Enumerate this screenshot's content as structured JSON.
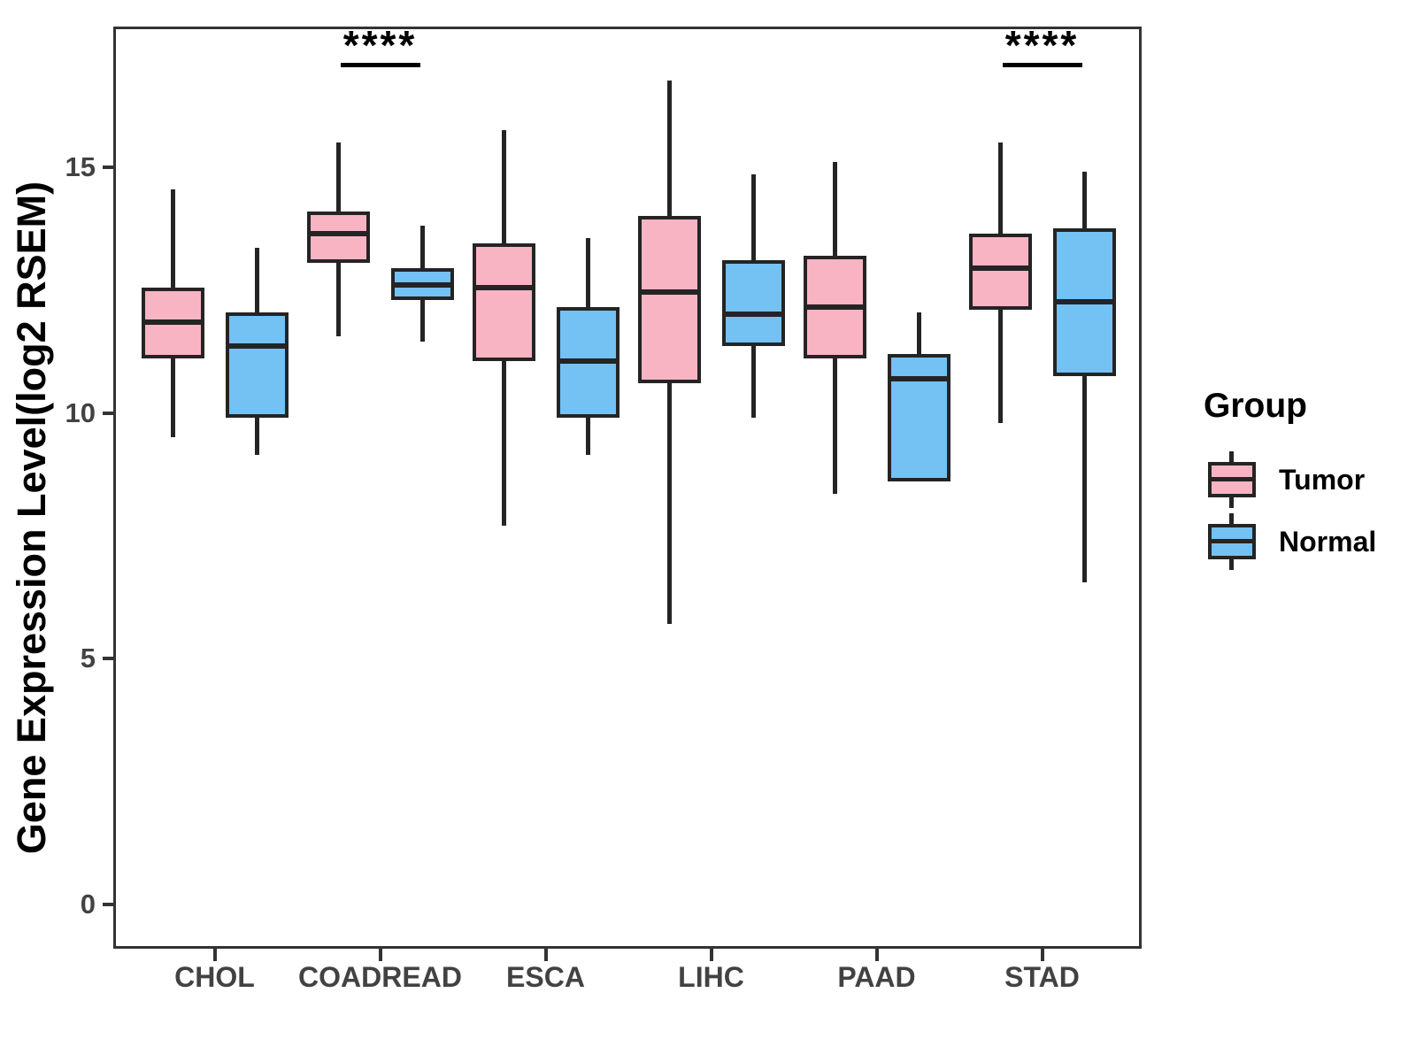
{
  "page": {
    "background": "#FFFFFF"
  },
  "legend": {
    "title": "Group",
    "entries": [
      {
        "label": "Tumor",
        "color": "#F9B4C4"
      },
      {
        "label": "Normal",
        "color": "#74C1F4"
      }
    ]
  },
  "colors": {
    "box_line": "#242424",
    "axis_text": "#424242",
    "panel_border": "#333333",
    "annotation": "#000000",
    "tumor_fill": "#F9B4C4",
    "normal_fill": "#74C1F4"
  },
  "chart_data": {
    "type": "boxplot",
    "title": "",
    "xlabel": "",
    "ylabel": "Gene Expression Level(log2 RSEM)",
    "categories": [
      "CHOL",
      "COADREAD",
      "ESCA",
      "LIHC",
      "PAAD",
      "STAD"
    ],
    "y_ticks": [
      0,
      5,
      10,
      15
    ],
    "ylim": [
      -0.9,
      17.9
    ],
    "grid": false,
    "legend_position": "right",
    "series": [
      {
        "name": "Tumor",
        "color": "#F9B4C4",
        "boxes": [
          {
            "category": "CHOL",
            "min": 9.5,
            "q1": 11.1,
            "median": 11.85,
            "q3": 12.55,
            "max": 14.55
          },
          {
            "category": "COADREAD",
            "min": 11.55,
            "q1": 13.05,
            "median": 13.65,
            "q3": 14.1,
            "max": 15.5
          },
          {
            "category": "ESCA",
            "min": 7.7,
            "q1": 11.05,
            "median": 12.55,
            "q3": 13.45,
            "max": 15.75
          },
          {
            "category": "LIHC",
            "min": 5.7,
            "q1": 10.6,
            "median": 12.45,
            "q3": 14.0,
            "max": 16.75
          },
          {
            "category": "PAAD",
            "min": 8.35,
            "q1": 11.1,
            "median": 12.15,
            "q3": 13.2,
            "max": 15.1
          },
          {
            "category": "STAD",
            "min": 9.8,
            "q1": 12.1,
            "median": 12.95,
            "q3": 13.65,
            "max": 15.5
          }
        ]
      },
      {
        "name": "Normal",
        "color": "#74C1F4",
        "boxes": [
          {
            "category": "CHOL",
            "min": 9.15,
            "q1": 9.9,
            "median": 11.35,
            "q3": 12.05,
            "max": 13.35
          },
          {
            "category": "COADREAD",
            "min": 11.45,
            "q1": 12.3,
            "median": 12.6,
            "q3": 12.95,
            "max": 13.8
          },
          {
            "category": "ESCA",
            "min": 9.15,
            "q1": 9.9,
            "median": 11.05,
            "q3": 12.15,
            "max": 13.55
          },
          {
            "category": "LIHC",
            "min": 9.9,
            "q1": 11.35,
            "median": 12.0,
            "q3": 13.1,
            "max": 14.85
          },
          {
            "category": "PAAD",
            "min": 8.6,
            "q1": 8.6,
            "median": 10.7,
            "q3": 11.2,
            "max": 12.05
          },
          {
            "category": "STAD",
            "min": 6.55,
            "q1": 10.75,
            "median": 12.25,
            "q3": 13.75,
            "max": 14.9
          }
        ]
      }
    ],
    "annotations": [
      {
        "category": "COADREAD",
        "label": "****"
      },
      {
        "category": "STAD",
        "label": "****"
      }
    ]
  }
}
